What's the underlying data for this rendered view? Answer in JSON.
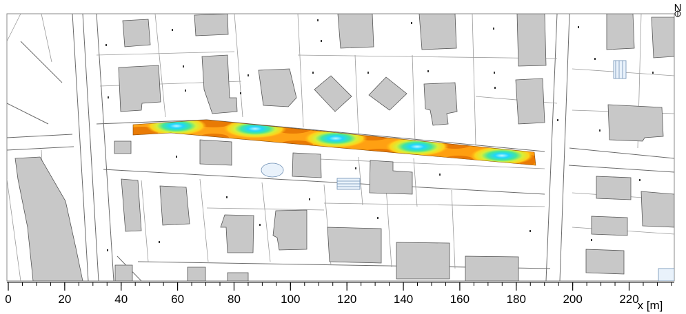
{
  "map": {
    "north_label": "N",
    "x_axis": {
      "unit_label": "x [m]",
      "min": 0,
      "max": 236,
      "major_ticks": [
        0,
        20,
        40,
        60,
        80,
        100,
        120,
        140,
        160,
        180,
        200,
        220
      ],
      "tick_labels": [
        "0",
        "20",
        "40",
        "60",
        "80",
        "100",
        "120",
        "140",
        "160",
        "180",
        "200",
        "220"
      ]
    },
    "colors": {
      "building": "#c8c8c8",
      "outline": "#555555",
      "low": "#1fd5ff",
      "mid_low": "#43e59e",
      "mid": "#d6ef3a",
      "mid_high": "#ffd21a",
      "high": "#ff9d0d",
      "peak": "#e16d00"
    }
  }
}
